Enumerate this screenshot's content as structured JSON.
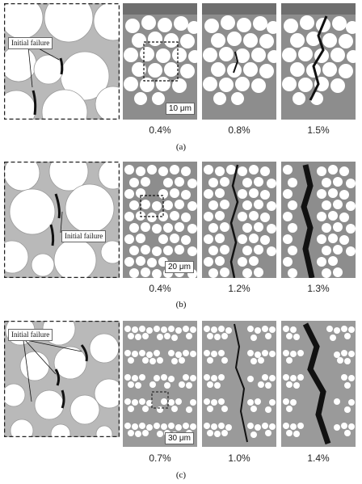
{
  "rows": [
    {
      "caption": "(a)",
      "annotation": "Initial failure",
      "scale_bar": "10 μm",
      "strains": [
        "0.4%",
        "0.8%",
        "1.5%"
      ]
    },
    {
      "caption": "(b)",
      "annotation": "Initial failure",
      "scale_bar": "20 μm",
      "strains": [
        "0.4%",
        "1.2%",
        "1.3%"
      ]
    },
    {
      "caption": "(c)",
      "annotation": "Initial failure",
      "scale_bar": "30 μm",
      "strains": [
        "0.7%",
        "1.0%",
        "1.4%"
      ]
    }
  ],
  "colors": {
    "matrix": "#b9b9b9",
    "fiber": "#ffffff",
    "micrograph_bg": "#8d8d8d",
    "crack": "#111111"
  }
}
